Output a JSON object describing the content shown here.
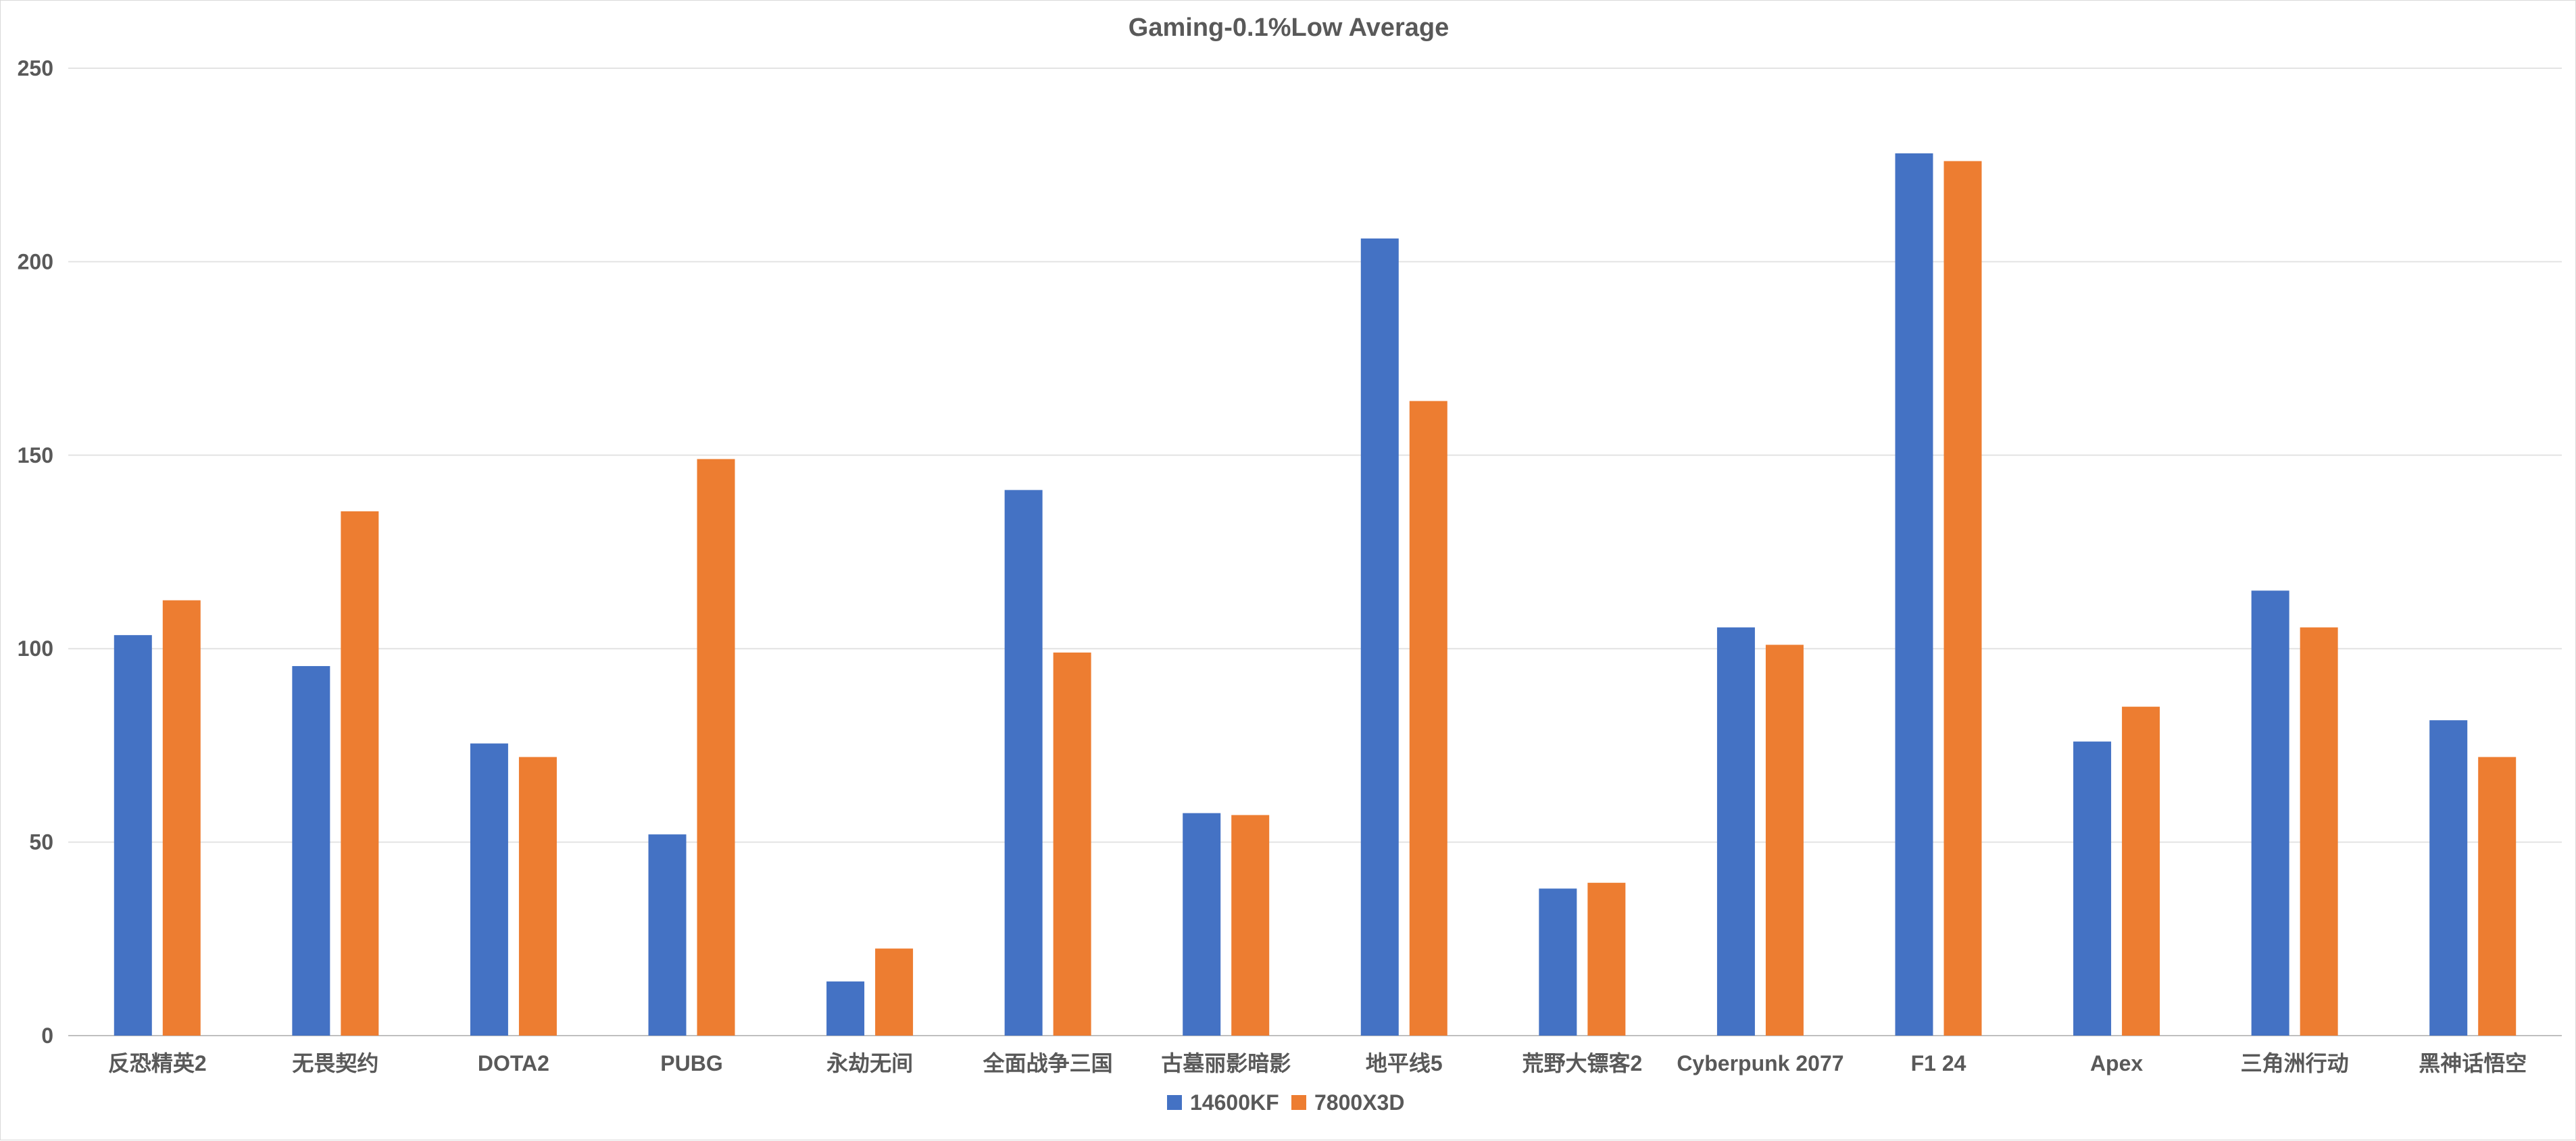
{
  "chart_data": {
    "type": "bar",
    "title": "Gaming-0.1%Low Average",
    "xlabel": "",
    "ylabel": "",
    "ylim": [
      0,
      250
    ],
    "yticks": [
      0,
      50,
      100,
      150,
      200,
      250
    ],
    "grid": true,
    "legend_position": "bottom",
    "categories": [
      "反恐精英2",
      "无畏契约",
      "DOTA2",
      "PUBG",
      "永劫无间",
      "全面战争三国",
      "古墓丽影暗影",
      "地平线5",
      "荒野大镖客2",
      "Cyberpunk 2077",
      "F1 24",
      "Apex",
      "三角洲行动",
      "黑神话悟空"
    ],
    "series": [
      {
        "name": "14600KF",
        "color": "#4472c4",
        "values": [
          103.5,
          95.5,
          75.5,
          52,
          14,
          141,
          57.5,
          206,
          38,
          105.5,
          228,
          76,
          115,
          81.5
        ]
      },
      {
        "name": "7800X3D",
        "color": "#ed7d31",
        "values": [
          112.5,
          135.5,
          72,
          149,
          22.5,
          99,
          57,
          164,
          39.5,
          101,
          226,
          85,
          105.5,
          72
        ]
      }
    ]
  }
}
